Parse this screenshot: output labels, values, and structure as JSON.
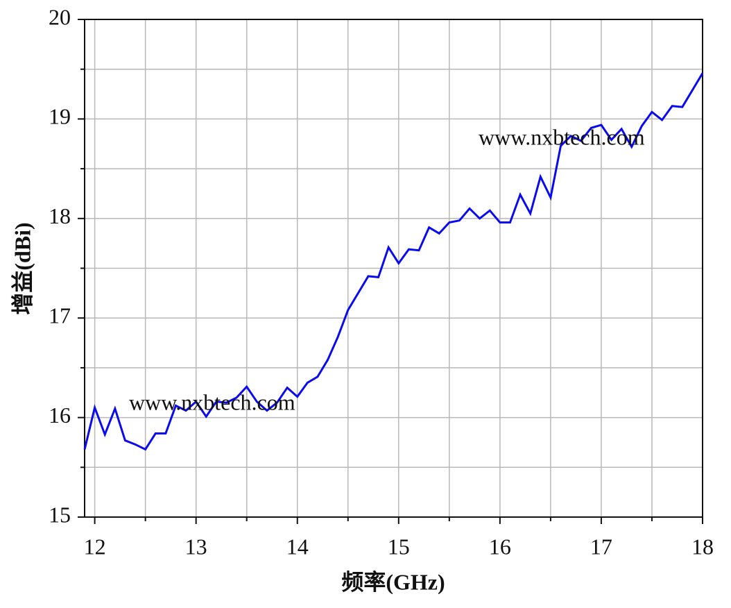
{
  "chart_data": {
    "type": "line",
    "xlabel": "频率(GHz)",
    "ylabel": "增益(dBi)",
    "x": [
      11.9,
      12.0,
      12.1,
      12.2,
      12.3,
      12.4,
      12.5,
      12.6,
      12.7,
      12.8,
      12.9,
      13.0,
      13.1,
      13.2,
      13.3,
      13.4,
      13.5,
      13.6,
      13.7,
      13.8,
      13.9,
      14.0,
      14.1,
      14.2,
      14.3,
      14.4,
      14.5,
      14.6,
      14.7,
      14.8,
      14.9,
      15.0,
      15.1,
      15.2,
      15.3,
      15.4,
      15.5,
      15.6,
      15.7,
      15.8,
      15.9,
      16.0,
      16.1,
      16.2,
      16.3,
      16.4,
      16.5,
      16.6,
      16.7,
      16.8,
      16.9,
      17.0,
      17.1,
      17.2,
      17.3,
      17.4,
      17.5,
      17.6,
      17.7,
      17.8,
      17.9,
      18.0
    ],
    "series": [
      {
        "color": "#0a0aee",
        "values": [
          15.68,
          16.1,
          15.83,
          16.09,
          15.77,
          15.73,
          15.68,
          15.84,
          15.84,
          16.12,
          16.07,
          16.16,
          16.01,
          16.16,
          16.15,
          16.2,
          16.31,
          16.16,
          16.07,
          16.15,
          16.3,
          16.21,
          16.35,
          16.41,
          16.58,
          16.81,
          17.08,
          17.25,
          17.42,
          17.41,
          17.71,
          17.55,
          17.69,
          17.68,
          17.91,
          17.85,
          17.96,
          17.98,
          18.1,
          18.0,
          18.08,
          17.96,
          17.96,
          18.24,
          18.05,
          18.42,
          18.21,
          18.73,
          18.83,
          18.78,
          18.91,
          18.94,
          18.79,
          18.9,
          18.72,
          18.93,
          19.07,
          18.99,
          19.13,
          19.12,
          19.29,
          19.46
        ]
      }
    ],
    "xlim": [
      11.9,
      18
    ],
    "ylim": [
      15,
      20
    ],
    "xticks": [
      12,
      13,
      14,
      15,
      16,
      17,
      18
    ],
    "yticks": [
      15,
      16,
      17,
      18,
      19,
      20
    ],
    "x_minor_ticks": [
      12.5,
      13.5,
      14.5,
      15.5,
      16.5,
      17.5
    ],
    "y_minor_ticks": [
      15.5,
      16.5,
      17.5,
      18.5,
      19.5
    ],
    "grid": true,
    "annotations": [
      "www.nxbtech.com",
      "www.nxbtech.com"
    ]
  }
}
